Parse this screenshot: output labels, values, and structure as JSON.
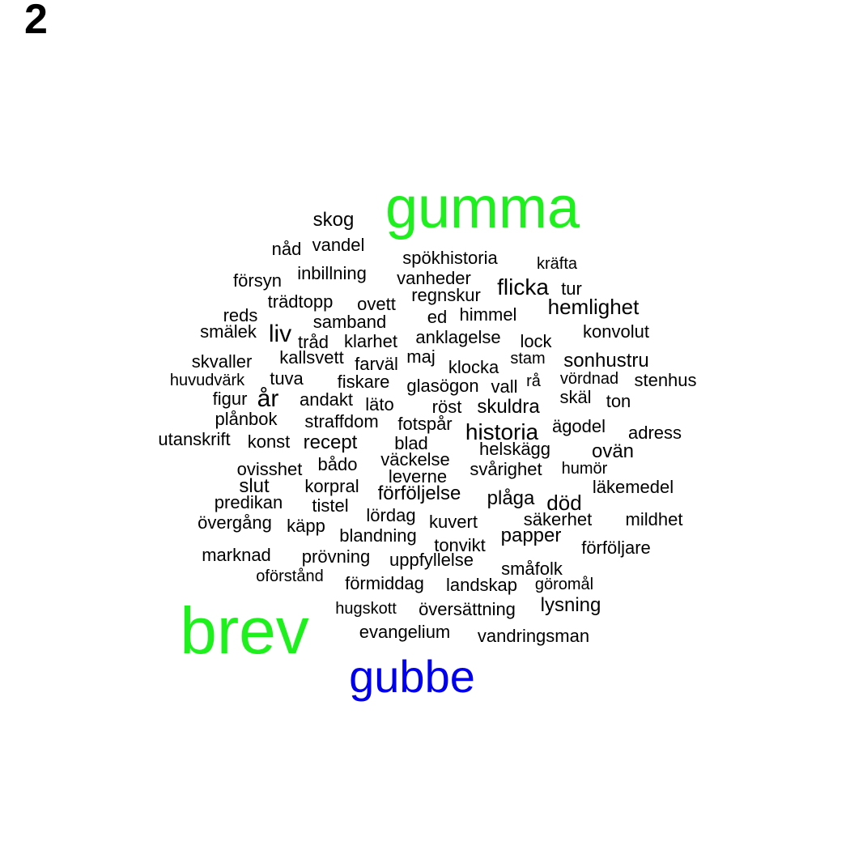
{
  "panel_label": "2",
  "colors": {
    "default": "#000000",
    "green": "#1ef01e",
    "blue": "#0000ee"
  },
  "words": [
    {
      "text": "gumma",
      "color": "green"
    },
    {
      "text": "brev",
      "color": "green"
    },
    {
      "text": "gubbe",
      "color": "blue"
    },
    {
      "text": "skog"
    },
    {
      "text": "nåd"
    },
    {
      "text": "vandel"
    },
    {
      "text": "spökhistoria"
    },
    {
      "text": "kräfta"
    },
    {
      "text": "försyn"
    },
    {
      "text": "inbillning"
    },
    {
      "text": "vanheder"
    },
    {
      "text": "flicka"
    },
    {
      "text": "tur"
    },
    {
      "text": "trädtopp"
    },
    {
      "text": "ovett"
    },
    {
      "text": "regnskur"
    },
    {
      "text": "hemlighet"
    },
    {
      "text": "reds"
    },
    {
      "text": "samband"
    },
    {
      "text": "ed"
    },
    {
      "text": "himmel"
    },
    {
      "text": "smälek"
    },
    {
      "text": "liv"
    },
    {
      "text": "tråd"
    },
    {
      "text": "klarhet"
    },
    {
      "text": "anklagelse"
    },
    {
      "text": "lock"
    },
    {
      "text": "konvolut"
    },
    {
      "text": "skvaller"
    },
    {
      "text": "kallsvett"
    },
    {
      "text": "farväl"
    },
    {
      "text": "maj"
    },
    {
      "text": "klocka"
    },
    {
      "text": "stam"
    },
    {
      "text": "sonhustru"
    },
    {
      "text": "huvudvärk"
    },
    {
      "text": "tuva"
    },
    {
      "text": "fiskare"
    },
    {
      "text": "glasögon"
    },
    {
      "text": "vall"
    },
    {
      "text": "rå"
    },
    {
      "text": "vördnad"
    },
    {
      "text": "stenhus"
    },
    {
      "text": "figur"
    },
    {
      "text": "år"
    },
    {
      "text": "andakt"
    },
    {
      "text": "läto"
    },
    {
      "text": "röst"
    },
    {
      "text": "skuldra"
    },
    {
      "text": "skäl"
    },
    {
      "text": "ton"
    },
    {
      "text": "plånbok"
    },
    {
      "text": "straffdom"
    },
    {
      "text": "fotspår"
    },
    {
      "text": "historia"
    },
    {
      "text": "ägodel"
    },
    {
      "text": "adress"
    },
    {
      "text": "utanskrift"
    },
    {
      "text": "konst"
    },
    {
      "text": "recept"
    },
    {
      "text": "blad"
    },
    {
      "text": "helskägg"
    },
    {
      "text": "ovän"
    },
    {
      "text": "ovisshet"
    },
    {
      "text": "bådo"
    },
    {
      "text": "väckelse"
    },
    {
      "text": "svårighet"
    },
    {
      "text": "humör"
    },
    {
      "text": "slut"
    },
    {
      "text": "korpral"
    },
    {
      "text": "leverne"
    },
    {
      "text": "förföljelse"
    },
    {
      "text": "läkemedel"
    },
    {
      "text": "predikan"
    },
    {
      "text": "tistel"
    },
    {
      "text": "plåga"
    },
    {
      "text": "död"
    },
    {
      "text": "övergång"
    },
    {
      "text": "käpp"
    },
    {
      "text": "lördag"
    },
    {
      "text": "kuvert"
    },
    {
      "text": "säkerhet"
    },
    {
      "text": "mildhet"
    },
    {
      "text": "blandning"
    },
    {
      "text": "papper"
    },
    {
      "text": "tonvikt"
    },
    {
      "text": "förföljare"
    },
    {
      "text": "marknad"
    },
    {
      "text": "prövning"
    },
    {
      "text": "uppfyllelse"
    },
    {
      "text": "småfolk"
    },
    {
      "text": "oförstånd"
    },
    {
      "text": "förmiddag"
    },
    {
      "text": "landskap"
    },
    {
      "text": "göromål"
    },
    {
      "text": "hugskott"
    },
    {
      "text": "översättning"
    },
    {
      "text": "lysning"
    },
    {
      "text": "evangelium"
    },
    {
      "text": "vandringsman"
    }
  ]
}
